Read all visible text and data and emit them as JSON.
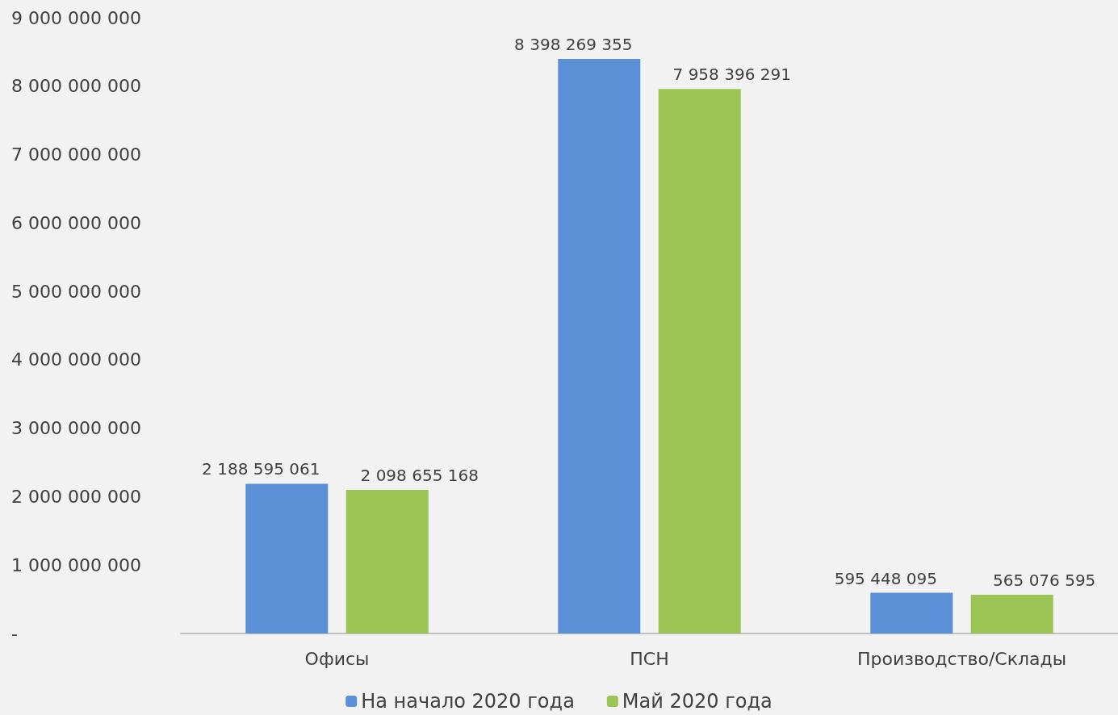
{
  "chart_data": {
    "type": "bar",
    "categories": [
      "Офисы",
      "ПСН",
      "Производство/Склады"
    ],
    "series": [
      {
        "name": "На начало 2020 года",
        "color": "#5b8fd6",
        "values": [
          2188595061,
          8398269355,
          595448095
        ],
        "value_labels": [
          "2 188 595 061",
          "8 398 269 355",
          "595 448 095"
        ]
      },
      {
        "name": "Май 2020 года",
        "color": "#9bc454",
        "values": [
          2098655168,
          7958396291,
          565076595
        ],
        "value_labels": [
          "2 098 655 168",
          "7 958 396 291",
          "565 076 595"
        ]
      }
    ],
    "ylim": [
      0,
      9000000000
    ],
    "yticks": [
      {
        "value": 0,
        "label": "-"
      },
      {
        "value": 1000000000,
        "label": "1 000 000 000"
      },
      {
        "value": 2000000000,
        "label": "2 000 000 000"
      },
      {
        "value": 3000000000,
        "label": "3 000 000 000"
      },
      {
        "value": 4000000000,
        "label": "4 000 000 000"
      },
      {
        "value": 5000000000,
        "label": "5 000 000 000"
      },
      {
        "value": 6000000000,
        "label": "6 000 000 000"
      },
      {
        "value": 7000000000,
        "label": "7 000 000 000"
      },
      {
        "value": 8000000000,
        "label": "8 000 000 000"
      },
      {
        "value": 9000000000,
        "label": "9 000 000 000"
      }
    ],
    "grid": false,
    "legend": "bottom"
  }
}
